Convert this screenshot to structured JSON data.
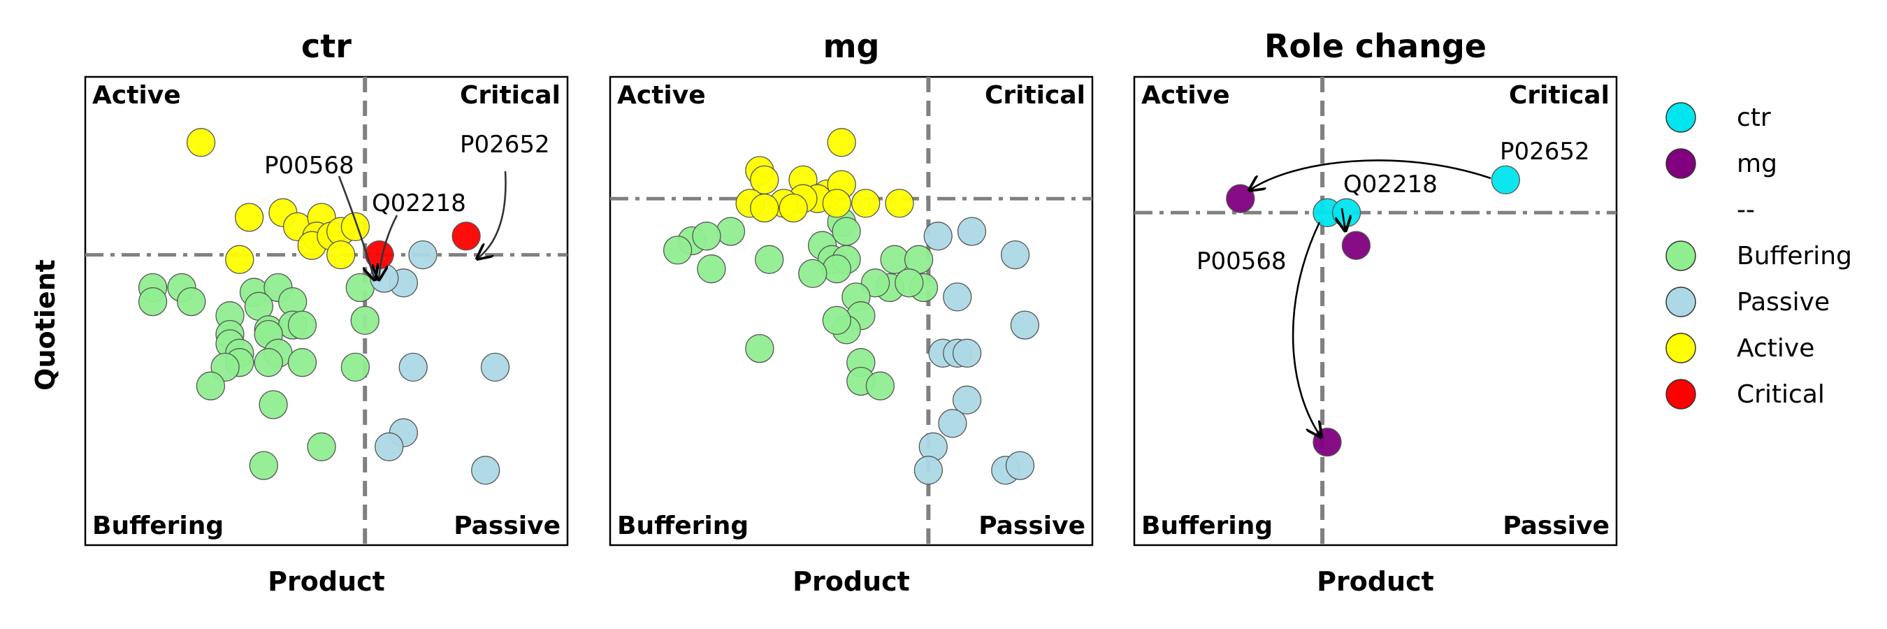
{
  "chart_data": [
    {
      "type": "scatter",
      "title": "ctr",
      "xlabel": "Product",
      "ylabel": "Quotient",
      "xlim": [
        0,
        100
      ],
      "ylim": [
        0,
        100
      ],
      "x_threshold": 58,
      "y_threshold": 62,
      "quadrants": {
        "top_left": "Active",
        "top_right": "Critical",
        "bottom_left": "Buffering",
        "bottom_right": "Passive"
      },
      "groups": [
        {
          "name": "Buffering",
          "points": [
            [
              14,
              55
            ],
            [
              20,
              55
            ],
            [
              22,
              52
            ],
            [
              14,
              52
            ],
            [
              30,
              49
            ],
            [
              35,
              54
            ],
            [
              40,
              55
            ],
            [
              43,
              52
            ],
            [
              36,
              51
            ],
            [
              38,
              46
            ],
            [
              43,
              47
            ],
            [
              45,
              47
            ],
            [
              30,
              45
            ],
            [
              30,
              43
            ],
            [
              32,
              41
            ],
            [
              38,
              45
            ],
            [
              40,
              41
            ],
            [
              38,
              39
            ],
            [
              32,
              39
            ],
            [
              45,
              39
            ],
            [
              29,
              38
            ],
            [
              26,
              34
            ],
            [
              39,
              30
            ],
            [
              56,
              38
            ],
            [
              58,
              48
            ],
            [
              49,
              21
            ],
            [
              37,
              17
            ],
            [
              57,
              55
            ]
          ]
        },
        {
          "name": "Passive",
          "points": [
            [
              70,
              62
            ],
            [
              66,
              56
            ],
            [
              62,
              57
            ],
            [
              68,
              38
            ],
            [
              85,
              38
            ],
            [
              66,
              24
            ],
            [
              63,
              21
            ],
            [
              83,
              16
            ]
          ]
        },
        {
          "name": "Active",
          "points": [
            [
              24,
              86
            ],
            [
              34,
              70
            ],
            [
              41,
              71
            ],
            [
              44,
              68
            ],
            [
              49,
              70
            ],
            [
              48,
              66
            ],
            [
              47,
              64
            ],
            [
              51,
              66
            ],
            [
              53,
              67
            ],
            [
              56,
              68
            ],
            [
              53,
              62
            ],
            [
              32,
              61
            ]
          ]
        },
        {
          "name": "Critical",
          "points": [
            [
              79,
              66
            ],
            [
              61,
              62
            ]
          ]
        }
      ],
      "annotations": [
        {
          "label": "P00568",
          "target": [
            59,
            62
          ]
        },
        {
          "label": "Q02218",
          "target": [
            60,
            62
          ]
        },
        {
          "label": "P02652",
          "target": [
            79,
            66
          ]
        }
      ]
    },
    {
      "type": "scatter",
      "title": "mg",
      "xlabel": "Product",
      "ylabel": "",
      "xlim": [
        0,
        100
      ],
      "ylim": [
        0,
        100
      ],
      "x_threshold": 66,
      "y_threshold": 74,
      "quadrants": {
        "top_left": "Active",
        "top_right": "Critical",
        "bottom_left": "Buffering",
        "bottom_right": "Passive"
      },
      "groups": [
        {
          "name": "Buffering",
          "points": [
            [
              17,
              65
            ],
            [
              25,
              67
            ],
            [
              20,
              66
            ],
            [
              14,
              63
            ],
            [
              21,
              59
            ],
            [
              33,
              61
            ],
            [
              44,
              64
            ],
            [
              48,
              69
            ],
            [
              49,
              67
            ],
            [
              46,
              61
            ],
            [
              49,
              61
            ],
            [
              47,
              59
            ],
            [
              42,
              58
            ],
            [
              59,
              61
            ],
            [
              64,
              61
            ],
            [
              65,
              55
            ],
            [
              58,
              55
            ],
            [
              55,
              56
            ],
            [
              62,
              56
            ],
            [
              51,
              53
            ],
            [
              52,
              49
            ],
            [
              49,
              46
            ],
            [
              47,
              48
            ],
            [
              31,
              42
            ],
            [
              52,
              39
            ],
            [
              52,
              35
            ],
            [
              56,
              34
            ]
          ]
        },
        {
          "name": "Passive",
          "points": [
            [
              68,
              66
            ],
            [
              75,
              67
            ],
            [
              84,
              62
            ],
            [
              86,
              47
            ],
            [
              72,
              53
            ],
            [
              69,
              41
            ],
            [
              72,
              41
            ],
            [
              74,
              41
            ],
            [
              74,
              31
            ],
            [
              71,
              26
            ],
            [
              67,
              21
            ],
            [
              66,
              16
            ],
            [
              82,
              16
            ],
            [
              85,
              17
            ]
          ]
        },
        {
          "name": "Active",
          "points": [
            [
              31,
              80
            ],
            [
              32,
              78
            ],
            [
              40,
              78
            ],
            [
              48,
              86
            ],
            [
              45,
              75
            ],
            [
              43,
              74
            ],
            [
              48,
              77
            ],
            [
              40,
              74
            ],
            [
              36,
              73
            ],
            [
              47,
              73
            ],
            [
              53,
              73
            ],
            [
              60,
              73
            ],
            [
              29,
              73
            ],
            [
              32,
              72
            ],
            [
              38,
              72
            ]
          ]
        }
      ]
    },
    {
      "type": "scatter",
      "title": "Role change",
      "xlabel": "Product",
      "ylabel": "",
      "xlim": [
        0,
        100
      ],
      "ylim": [
        0,
        100
      ],
      "x_threshold": 39,
      "y_threshold": 71,
      "quadrants": {
        "top_left": "Active",
        "top_right": "Critical",
        "bottom_left": "Buffering",
        "bottom_right": "Passive"
      },
      "series": [
        {
          "name": "ctr",
          "points": [
            [
              77,
              78
            ],
            [
              40,
              71
            ],
            [
              44,
              71
            ]
          ]
        },
        {
          "name": "mg",
          "points": [
            [
              22,
              74
            ],
            [
              46,
              64
            ],
            [
              40,
              22
            ]
          ]
        }
      ],
      "transitions": [
        {
          "label": "P02652",
          "from": [
            77,
            78
          ],
          "to": [
            22,
            74
          ]
        },
        {
          "label": "Q02218",
          "from": [
            44,
            71
          ],
          "to": [
            46,
            64
          ]
        },
        {
          "label": "P00568",
          "from": [
            40,
            71
          ],
          "to": [
            40,
            22
          ]
        }
      ]
    }
  ],
  "legend": {
    "position": "right",
    "entries": [
      {
        "label": "ctr",
        "color": "#00e5ee"
      },
      {
        "label": "mg",
        "color": "#800080"
      },
      {
        "label": "--",
        "color": ""
      },
      {
        "label": "Buffering",
        "color": "#90ee90"
      },
      {
        "label": "Passive",
        "color": "#add8e6"
      },
      {
        "label": "Active",
        "color": "#ffff00"
      },
      {
        "label": "Critical",
        "color": "#ff0000"
      }
    ]
  },
  "colors": {
    "Buffering": "#90ee90",
    "Passive": "#add8e6",
    "Active": "#ffff00",
    "Critical": "#ff0000",
    "ctr": "#00e5ee",
    "mg": "#800080",
    "threshold_line": "#808080"
  }
}
